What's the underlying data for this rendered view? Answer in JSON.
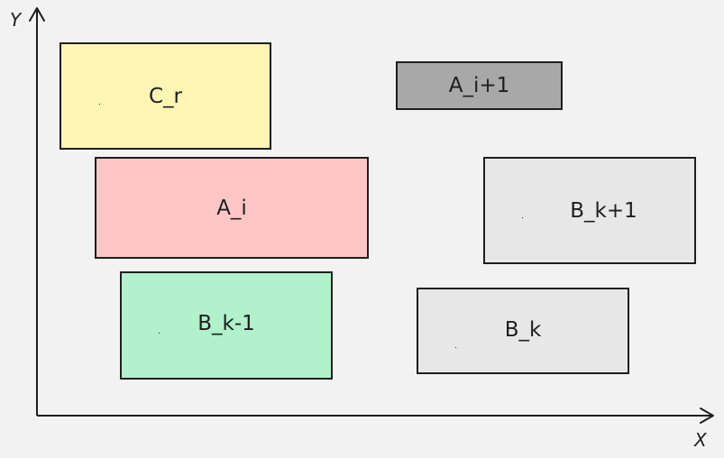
{
  "axes": {
    "x_label": "X",
    "y_label": "Y"
  },
  "boxes": {
    "c_r": {
      "label": "C_r",
      "color": "#fff6b3"
    },
    "a_i1": {
      "label": "A_i+1",
      "color": "#a8a8a8"
    },
    "a_i": {
      "label": "A_i",
      "color": "#ffc6c6"
    },
    "b_k1p": {
      "label": "B_k+1",
      "color": "#e7e7e7"
    },
    "b_k1m": {
      "label": "B_k-1",
      "color": "#b1f1cb"
    },
    "b_k": {
      "label": "B_k",
      "color": "#e7e7e7"
    }
  }
}
